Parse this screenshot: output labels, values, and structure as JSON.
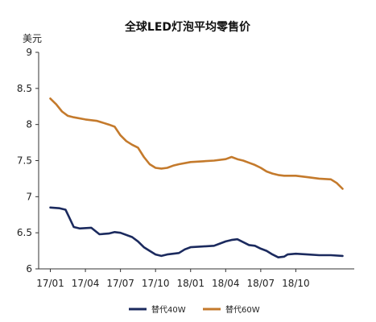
{
  "chart_data": {
    "type": "line",
    "title": "全球LED灯泡平均零售价",
    "ylabel": "美元",
    "xlabel": "",
    "ylim": [
      6,
      9
    ],
    "yticks": [
      6,
      6.5,
      7,
      7.5,
      8,
      8.5,
      9
    ],
    "ytick_labels": [
      "6",
      "6.5",
      "7",
      "7.5",
      "8",
      "8.5",
      "9"
    ],
    "x_range": [
      0,
      27
    ],
    "xticks": [
      1,
      4,
      7,
      10,
      13,
      16,
      19,
      22
    ],
    "xtick_labels": [
      "17/01",
      "17/04",
      "17/07",
      "17/10",
      "18/01",
      "18/04",
      "18/07",
      "18/10"
    ],
    "grid": false,
    "legend": "bottom",
    "series": [
      {
        "name": "替代40W",
        "color": "#1b2a5e",
        "points": [
          [
            1,
            6.85
          ],
          [
            1.8,
            6.84
          ],
          [
            2.3,
            6.82
          ],
          [
            2.6,
            6.72
          ],
          [
            3,
            6.58
          ],
          [
            3.5,
            6.56
          ],
          [
            4.5,
            6.57
          ],
          [
            5.2,
            6.48
          ],
          [
            6,
            6.49
          ],
          [
            6.5,
            6.51
          ],
          [
            7,
            6.5
          ],
          [
            8,
            6.44
          ],
          [
            8.5,
            6.38
          ],
          [
            9,
            6.3
          ],
          [
            9.5,
            6.25
          ],
          [
            10,
            6.2
          ],
          [
            10.5,
            6.18
          ],
          [
            11,
            6.2
          ],
          [
            12,
            6.22
          ],
          [
            12.5,
            6.27
          ],
          [
            13,
            6.3
          ],
          [
            14,
            6.31
          ],
          [
            15,
            6.32
          ],
          [
            15.5,
            6.35
          ],
          [
            16,
            6.38
          ],
          [
            16.5,
            6.4
          ],
          [
            17,
            6.41
          ],
          [
            17.5,
            6.37
          ],
          [
            18,
            6.33
          ],
          [
            18.5,
            6.32
          ],
          [
            19,
            6.28
          ],
          [
            19.5,
            6.25
          ],
          [
            20,
            6.2
          ],
          [
            20.5,
            6.16
          ],
          [
            21,
            6.17
          ],
          [
            21.3,
            6.2
          ],
          [
            22,
            6.21
          ],
          [
            23,
            6.2
          ],
          [
            24,
            6.19
          ],
          [
            25,
            6.19
          ],
          [
            26,
            6.18
          ]
        ]
      },
      {
        "name": "替代60W",
        "color": "#c47a2c",
        "points": [
          [
            1,
            8.36
          ],
          [
            1.5,
            8.28
          ],
          [
            2,
            8.18
          ],
          [
            2.5,
            8.12
          ],
          [
            3,
            8.1
          ],
          [
            4,
            8.07
          ],
          [
            5,
            8.05
          ],
          [
            6,
            8
          ],
          [
            6.5,
            7.97
          ],
          [
            7,
            7.85
          ],
          [
            7.5,
            7.77
          ],
          [
            8,
            7.72
          ],
          [
            8.5,
            7.68
          ],
          [
            9,
            7.55
          ],
          [
            9.5,
            7.45
          ],
          [
            10,
            7.4
          ],
          [
            10.5,
            7.39
          ],
          [
            11,
            7.4
          ],
          [
            11.5,
            7.43
          ],
          [
            12,
            7.45
          ],
          [
            13,
            7.48
          ],
          [
            14,
            7.49
          ],
          [
            15,
            7.5
          ],
          [
            16,
            7.52
          ],
          [
            16.5,
            7.55
          ],
          [
            17,
            7.52
          ],
          [
            17.5,
            7.5
          ],
          [
            18,
            7.47
          ],
          [
            18.5,
            7.44
          ],
          [
            19,
            7.4
          ],
          [
            19.5,
            7.35
          ],
          [
            20,
            7.32
          ],
          [
            20.5,
            7.3
          ],
          [
            21,
            7.29
          ],
          [
            22,
            7.29
          ],
          [
            22.5,
            7.28
          ],
          [
            23,
            7.27
          ],
          [
            24,
            7.25
          ],
          [
            25,
            7.24
          ],
          [
            25.5,
            7.19
          ],
          [
            26,
            7.11
          ]
        ]
      }
    ]
  }
}
